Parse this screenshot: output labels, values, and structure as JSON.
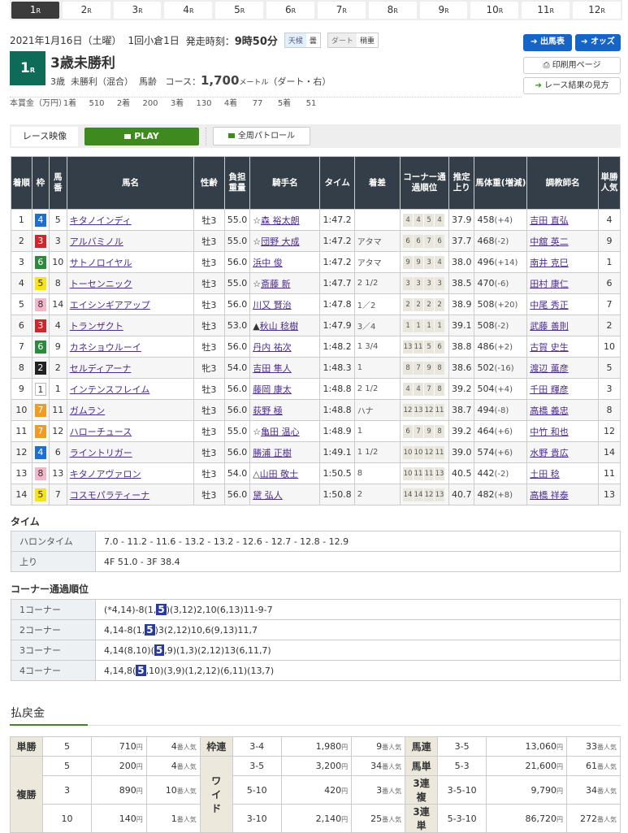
{
  "race_tabs": [
    "1",
    "2",
    "3",
    "4",
    "5",
    "6",
    "7",
    "8",
    "9",
    "10",
    "11",
    "12"
  ],
  "race_tab_suffix": "R",
  "header": {
    "date": "2021年1月16日（土曜）",
    "meeting": "1回小倉1日",
    "start_label": "発走時刻：",
    "start_time": "9時50分",
    "weather_label": "天候",
    "weather": "曇",
    "track_label": "ダート",
    "track_cond": "稍重"
  },
  "race": {
    "number": "1",
    "suffix": "R",
    "title": "3歳未勝利",
    "age": "3歳",
    "class": "未勝利（混合）",
    "weight_rule": "馬齢",
    "course_label": "コース：",
    "distance": "1,700",
    "unit": "メートル",
    "surface": "（ダート・右）"
  },
  "buttons": {
    "entries": "出馬表",
    "odds": "オッズ",
    "print": "印刷用ページ",
    "howto": "レース結果の見方"
  },
  "prize": {
    "label": "本賞金（万円）",
    "places": [
      {
        "rank": "1着",
        "value": "510"
      },
      {
        "rank": "2着",
        "value": "200"
      },
      {
        "rank": "3着",
        "value": "130"
      },
      {
        "rank": "4着",
        "value": "77"
      },
      {
        "rank": "5着",
        "value": "51"
      }
    ]
  },
  "video": {
    "label": "レース映像",
    "play": "PLAY",
    "patrol": "全周パトロール"
  },
  "colors": {
    "waku": {
      "1": "#ffffff",
      "2": "#222222",
      "3": "#d0262b",
      "4": "#1f6fd0",
      "5": "#f7e21e",
      "6": "#2b8a3e",
      "7": "#f39a23",
      "8": "#f4b6c8"
    },
    "accent_green": "#3f8a1e",
    "brand_blue": "#1565c8"
  },
  "results": {
    "headers": [
      "着順",
      "枠",
      "馬番",
      "馬名",
      "性齢",
      "負担重量",
      "騎手名",
      "タイム",
      "着差",
      "コーナー通過順位",
      "推定上り",
      "馬体重(増減)",
      "調教師名",
      "単勝人気"
    ],
    "rows": [
      {
        "place": "1",
        "waku": "4",
        "num": "5",
        "horse": "キタノインディ",
        "sexage": "牡3",
        "weight": "55.0",
        "mark": "☆",
        "jockey": "森 裕太朗",
        "time": "1:47.2",
        "margin": "",
        "corners": [
          "4",
          "4",
          "5",
          "4"
        ],
        "last": "37.9",
        "body": "458",
        "diff": "(+4)",
        "trainer": "吉田 直弘",
        "pop": "4"
      },
      {
        "place": "2",
        "waku": "3",
        "num": "3",
        "horse": "アルバミノル",
        "sexage": "牡3",
        "weight": "55.0",
        "mark": "☆",
        "jockey": "団野 大成",
        "time": "1:47.2",
        "margin": "アタマ",
        "corners": [
          "6",
          "6",
          "7",
          "6"
        ],
        "last": "37.7",
        "body": "468",
        "diff": "(-2)",
        "trainer": "中舘 英二",
        "pop": "9"
      },
      {
        "place": "3",
        "waku": "6",
        "num": "10",
        "horse": "サトノロイヤル",
        "sexage": "牡3",
        "weight": "56.0",
        "mark": "",
        "jockey": "浜中 俊",
        "time": "1:47.2",
        "margin": "アタマ",
        "corners": [
          "9",
          "9",
          "3",
          "4"
        ],
        "last": "38.0",
        "body": "496",
        "diff": "(+14)",
        "trainer": "南井 克巳",
        "pop": "1"
      },
      {
        "place": "4",
        "waku": "5",
        "num": "8",
        "horse": "トーセンニック",
        "sexage": "牡3",
        "weight": "55.0",
        "mark": "☆",
        "jockey": "斎藤 新",
        "time": "1:47.7",
        "margin": "2 1/2",
        "corners": [
          "3",
          "3",
          "3",
          "3"
        ],
        "last": "38.5",
        "body": "470",
        "diff": "(-6)",
        "trainer": "田村 康仁",
        "pop": "6"
      },
      {
        "place": "5",
        "waku": "8",
        "num": "14",
        "horse": "エイシンギアアップ",
        "sexage": "牡3",
        "weight": "56.0",
        "mark": "",
        "jockey": "川又 賢治",
        "time": "1:47.8",
        "margin": "1／2",
        "corners": [
          "2",
          "2",
          "2",
          "2"
        ],
        "last": "38.9",
        "body": "508",
        "diff": "(+20)",
        "trainer": "中尾 秀正",
        "pop": "7"
      },
      {
        "place": "6",
        "waku": "3",
        "num": "4",
        "horse": "トランザクト",
        "sexage": "牡3",
        "weight": "53.0",
        "mark": "▲",
        "jockey": "秋山 稔樹",
        "time": "1:47.9",
        "margin": "3／4",
        "corners": [
          "1",
          "1",
          "1",
          "1"
        ],
        "last": "39.1",
        "body": "508",
        "diff": "(-2)",
        "trainer": "武藤 善則",
        "pop": "2"
      },
      {
        "place": "7",
        "waku": "6",
        "num": "9",
        "horse": "カネショウルーイ",
        "sexage": "牡3",
        "weight": "56.0",
        "mark": "",
        "jockey": "丹内 祐次",
        "time": "1:48.2",
        "margin": "1 3/4",
        "corners": [
          "13",
          "11",
          "5",
          "6"
        ],
        "last": "38.8",
        "body": "486",
        "diff": "(+2)",
        "trainer": "古賀 史生",
        "pop": "10"
      },
      {
        "place": "8",
        "waku": "2",
        "num": "2",
        "horse": "セルディアーナ",
        "sexage": "牝3",
        "weight": "54.0",
        "mark": "",
        "jockey": "吉田 隼人",
        "time": "1:48.3",
        "margin": "1",
        "corners": [
          "8",
          "7",
          "9",
          "8"
        ],
        "last": "38.6",
        "body": "502",
        "diff": "(-16)",
        "trainer": "渡辺 薫彦",
        "pop": "5"
      },
      {
        "place": "9",
        "waku": "1",
        "num": "1",
        "horse": "インテンスフレイム",
        "sexage": "牡3",
        "weight": "56.0",
        "mark": "",
        "jockey": "藤岡 康太",
        "time": "1:48.8",
        "margin": "2 1/2",
        "corners": [
          "4",
          "4",
          "7",
          "8"
        ],
        "last": "39.2",
        "body": "504",
        "diff": "(+4)",
        "trainer": "千田 輝彦",
        "pop": "3"
      },
      {
        "place": "10",
        "waku": "7",
        "num": "11",
        "horse": "ガムラン",
        "sexage": "牡3",
        "weight": "56.0",
        "mark": "",
        "jockey": "荻野 極",
        "time": "1:48.8",
        "margin": "ハナ",
        "corners": [
          "12",
          "13",
          "12",
          "11"
        ],
        "last": "38.7",
        "body": "494",
        "diff": "(-8)",
        "trainer": "高橋 義忠",
        "pop": "8"
      },
      {
        "place": "11",
        "waku": "7",
        "num": "12",
        "horse": "ハローチュース",
        "sexage": "牡3",
        "weight": "55.0",
        "mark": "☆",
        "jockey": "亀田 温心",
        "time": "1:48.9",
        "margin": "1",
        "corners": [
          "6",
          "7",
          "9",
          "8"
        ],
        "last": "39.2",
        "body": "464",
        "diff": "(+6)",
        "trainer": "中竹 和也",
        "pop": "12"
      },
      {
        "place": "12",
        "waku": "4",
        "num": "6",
        "horse": "ライントリガー",
        "sexage": "牡3",
        "weight": "56.0",
        "mark": "",
        "jockey": "勝浦 正樹",
        "time": "1:49.1",
        "margin": "1 1/2",
        "corners": [
          "10",
          "10",
          "12",
          "11"
        ],
        "last": "39.0",
        "body": "574",
        "diff": "(+6)",
        "trainer": "水野 貴広",
        "pop": "14"
      },
      {
        "place": "13",
        "waku": "8",
        "num": "13",
        "horse": "キタノアヴァロン",
        "sexage": "牡3",
        "weight": "54.0",
        "mark": "△",
        "jockey": "山田 敬士",
        "time": "1:50.5",
        "margin": "8",
        "corners": [
          "10",
          "11",
          "11",
          "13"
        ],
        "last": "40.5",
        "body": "442",
        "diff": "(-2)",
        "trainer": "土田 稔",
        "pop": "11"
      },
      {
        "place": "14",
        "waku": "5",
        "num": "7",
        "horse": "コスモパラティーナ",
        "sexage": "牡3",
        "weight": "56.0",
        "mark": "",
        "jockey": "黛 弘人",
        "time": "1:50.8",
        "margin": "2",
        "corners": [
          "14",
          "14",
          "12",
          "13"
        ],
        "last": "40.7",
        "body": "482",
        "diff": "(+8)",
        "trainer": "高橋 祥泰",
        "pop": "13"
      }
    ]
  },
  "times": {
    "heading": "タイム",
    "furlong_label": "ハロンタイム",
    "furlong": "7.0 - 11.2 - 11.6 - 13.2 - 13.2 - 12.6 - 12.7 - 12.8 - 12.9",
    "last_label": "上り",
    "last": "4F 51.0 - 3F 38.4"
  },
  "corners": {
    "heading": "コーナー通過順位",
    "rows": [
      {
        "label": "1コーナー",
        "before": "(*4,14)-8(1,",
        "hl": "5",
        "after": ")(3,12)2,10(6,13)11-9-7"
      },
      {
        "label": "2コーナー",
        "before": "4,14-8(1,",
        "hl": "5",
        "after": ")3(2,12)10,6(9,13)11,7"
      },
      {
        "label": "3コーナー",
        "before": "4,14(8,10)(",
        "hl": "5",
        "after": ",9)(1,3)(2,12)13(6,11,7)"
      },
      {
        "label": "4コーナー",
        "before": "4,14,8(",
        "hl": "5",
        "after": ",10)(3,9)(1,2,12)(6,11)(13,7)"
      }
    ]
  },
  "payout": {
    "heading": "払戻金",
    "yen": "円",
    "pop_suffix": "番人気",
    "tansho": {
      "label": "単勝",
      "n": "5",
      "y": "710",
      "p": "4"
    },
    "fukusho": {
      "label": "複勝",
      "rows": [
        {
          "n": "5",
          "y": "200",
          "p": "4"
        },
        {
          "n": "3",
          "y": "890",
          "p": "10"
        },
        {
          "n": "10",
          "y": "140",
          "p": "1"
        }
      ]
    },
    "wakuren": {
      "label": "枠連",
      "n": "3-4",
      "y": "1,980",
      "p": "9"
    },
    "wide": {
      "label": "ワイド",
      "rows": [
        {
          "n": "3-5",
          "y": "3,200",
          "p": "34"
        },
        {
          "n": "5-10",
          "y": "420",
          "p": "3"
        },
        {
          "n": "3-10",
          "y": "2,140",
          "p": "25"
        }
      ]
    },
    "right": [
      {
        "label": "馬連",
        "n": "3-5",
        "y": "13,060",
        "p": "33"
      },
      {
        "label": "馬単",
        "n": "5-3",
        "y": "21,600",
        "p": "61"
      },
      {
        "label": "3連複",
        "n": "3-5-10",
        "y": "9,790",
        "p": "34"
      },
      {
        "label": "3連単",
        "n": "5-3-10",
        "y": "86,720",
        "p": "272"
      }
    ]
  }
}
